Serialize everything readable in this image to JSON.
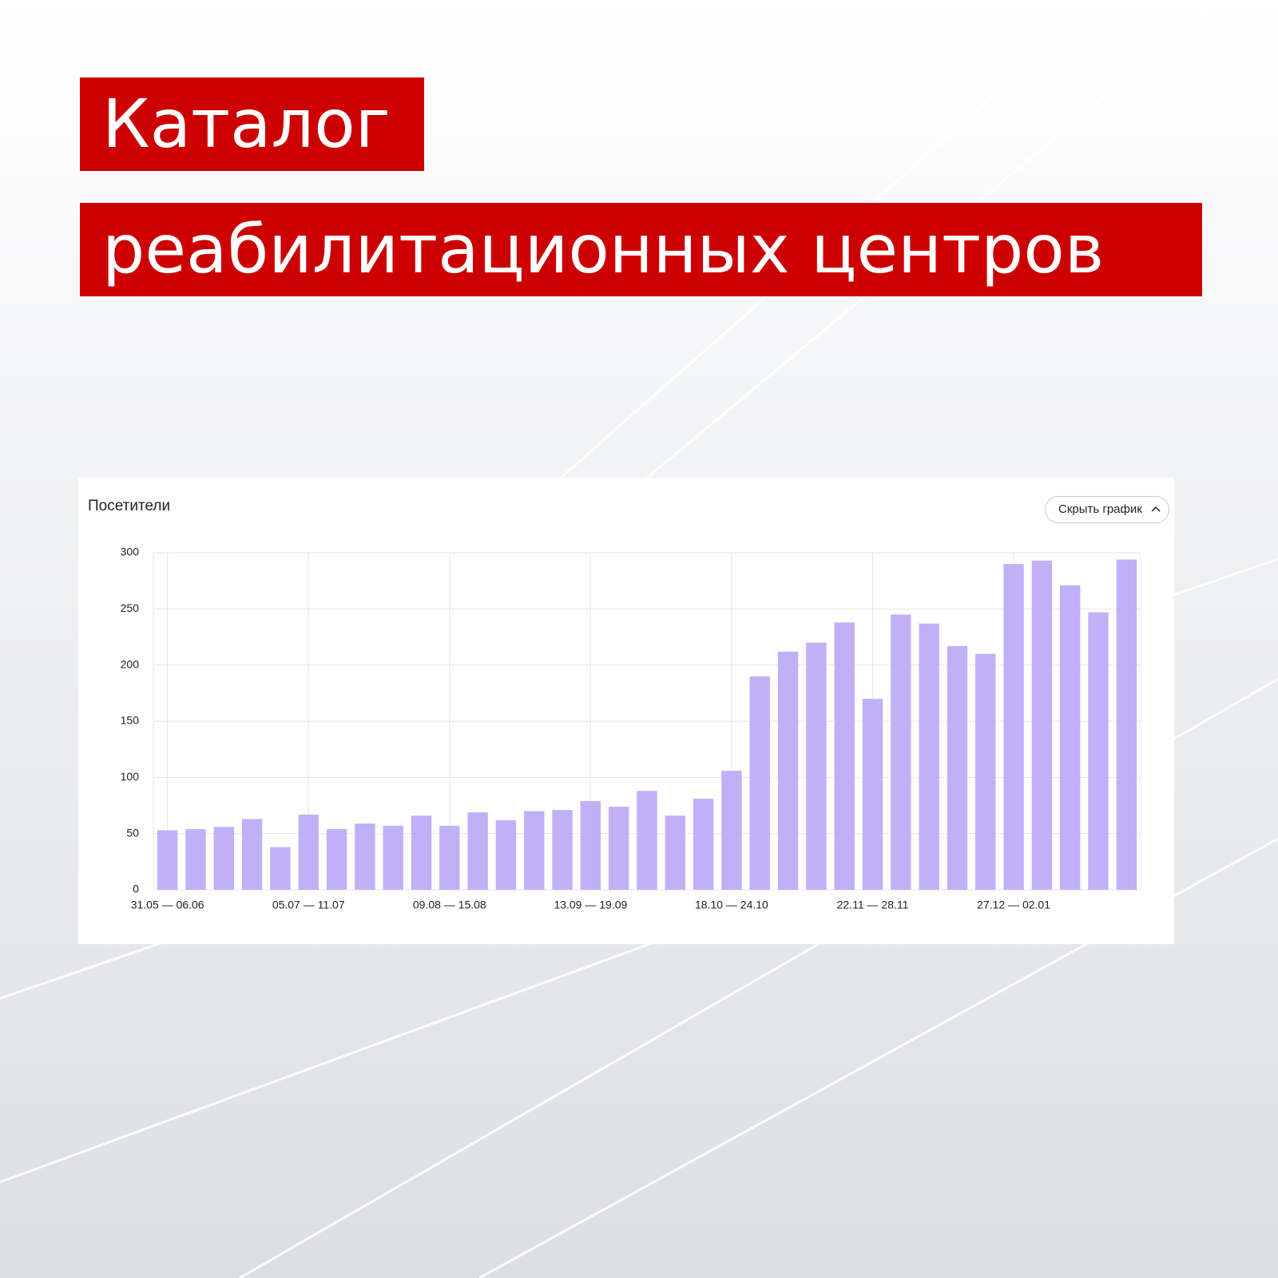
{
  "header": {
    "line1": "Каталог",
    "line2": "реабилитационных центров"
  },
  "button": {
    "label": "Скрыть график"
  },
  "chart_data": {
    "type": "bar",
    "title": "Посетители",
    "categories": [
      "31.05 — 06.06",
      null,
      null,
      null,
      null,
      "05.07 — 11.07",
      null,
      null,
      null,
      null,
      "09.08 — 15.08",
      null,
      null,
      null,
      null,
      "13.09 — 19.09",
      null,
      null,
      null,
      null,
      "18.10 — 24.10",
      null,
      null,
      null,
      null,
      "22.11 — 28.11",
      null,
      null,
      null,
      null,
      "27.12 — 02.01",
      null,
      null,
      null,
      null
    ],
    "values": [
      53,
      54,
      56,
      63,
      38,
      67,
      54,
      59,
      57,
      66,
      57,
      69,
      62,
      70,
      71,
      79,
      74,
      88,
      66,
      81,
      106,
      190,
      212,
      220,
      238,
      170,
      245,
      237,
      217,
      210,
      290,
      293,
      271,
      247,
      294
    ],
    "color": "#c2b0f7",
    "ylim": [
      0,
      300
    ],
    "yticks": [
      0,
      50,
      100,
      150,
      200,
      250,
      300
    ],
    "grid": true
  }
}
